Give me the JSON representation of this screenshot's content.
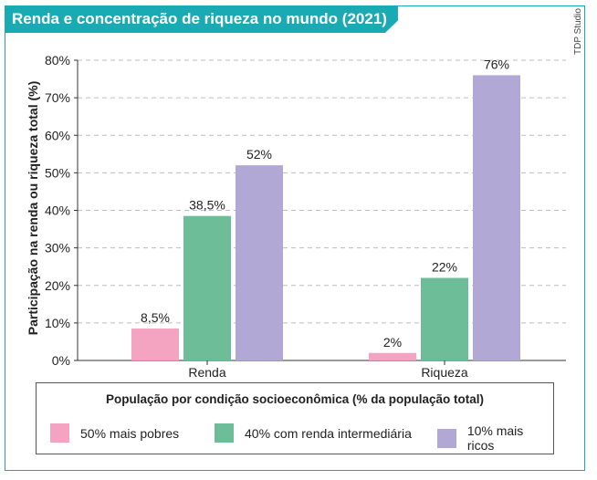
{
  "header": {
    "title": "Renda e concentração de riqueza no mundo (2021)"
  },
  "credit": "TDP Studio",
  "chart_data": {
    "type": "bar",
    "title": "Renda e concentração de riqueza no mundo (2021)",
    "ylabel": "Participação na renda ou riqueza total (%)",
    "xlabel": "",
    "ylim": [
      0,
      80
    ],
    "yticks": [
      "0%",
      "10%",
      "20%",
      "30%",
      "40%",
      "50%",
      "60%",
      "70%",
      "80%"
    ],
    "grid": true,
    "categories": [
      "Renda",
      "Riqueza"
    ],
    "series": [
      {
        "name": "50% mais pobres",
        "color": "#f4a3c0",
        "values": [
          8.5,
          2
        ],
        "labels": [
          "8,5%",
          "2%"
        ]
      },
      {
        "name": "40% com renda intermediária",
        "color": "#6dbd98",
        "values": [
          38.5,
          22
        ],
        "labels": [
          "38,5%",
          "22%"
        ]
      },
      {
        "name": "10% mais ricos",
        "color": "#b1a8d5",
        "values": [
          52,
          76
        ],
        "labels": [
          "52%",
          "76%"
        ]
      }
    ],
    "legend": {
      "title": "População por condição socioeconômica (% da população total)",
      "placement": "bottom"
    }
  }
}
